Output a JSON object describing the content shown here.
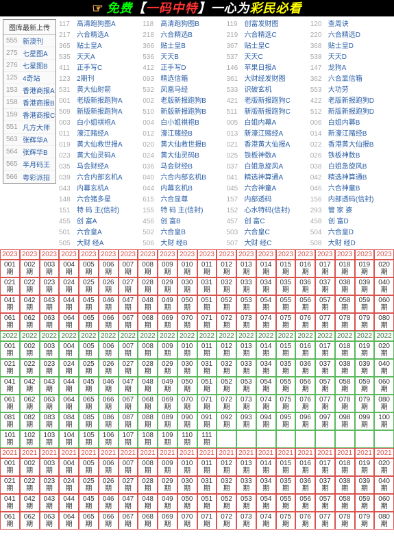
{
  "banner": {
    "hand": "☞",
    "t1": "免费",
    "lb": "【",
    "t2": "一码中特",
    "rb": "】",
    "t3": "一心为",
    "t4": "彩民必看"
  },
  "sidebar": {
    "title": "图库最新上传",
    "items": [
      {
        "n": "555",
        "t": "新澳刊"
      },
      {
        "n": "275",
        "t": "七星图A"
      },
      {
        "n": "276",
        "t": "七星图B"
      },
      {
        "n": "125",
        "t": "4奇站"
      },
      {
        "n": "153",
        "t": "香港商报A"
      },
      {
        "n": "158",
        "t": "香港商报B"
      },
      {
        "n": "159",
        "t": "香港商报C"
      },
      {
        "n": "551",
        "t": "凡方大师"
      },
      {
        "n": "563",
        "t": "张辉华A"
      },
      {
        "n": "564",
        "t": "张辉华B"
      },
      {
        "n": "565",
        "t": "半月码王"
      },
      {
        "n": "566",
        "t": "粤彩派招"
      }
    ]
  },
  "links": [
    [
      {
        "n": "117",
        "t": "高清跑狗图A"
      },
      {
        "n": "118",
        "t": "高清跑狗图B"
      },
      {
        "n": "119",
        "t": "创富发财图"
      },
      {
        "n": "120",
        "t": "查周诀"
      }
    ],
    [
      {
        "n": "217",
        "t": "六合精选A"
      },
      {
        "n": "218",
        "t": "六合精选B"
      },
      {
        "n": "219",
        "t": "六合精选C"
      },
      {
        "n": "220",
        "t": "六合精选D"
      }
    ],
    [
      {
        "n": "365",
        "t": "贴士皇A"
      },
      {
        "n": "366",
        "t": "贴士皇B"
      },
      {
        "n": "367",
        "t": "贴士皇C"
      },
      {
        "n": "368",
        "t": "贴士皇D"
      }
    ],
    [
      {
        "n": "535",
        "t": "天天A"
      },
      {
        "n": "536",
        "t": "天天B"
      },
      {
        "n": "537",
        "t": "天天C"
      },
      {
        "n": "538",
        "t": "天天D"
      }
    ],
    [
      {
        "n": "411",
        "t": "正手写C"
      },
      {
        "n": "412",
        "t": "正手写D"
      },
      {
        "n": "146",
        "t": "苹果日报A"
      },
      {
        "n": "147",
        "t": "龙狗A"
      }
    ],
    [
      {
        "n": "123",
        "t": "2期刊"
      },
      {
        "n": "093",
        "t": "精选信箱"
      },
      {
        "n": "361",
        "t": "大财经发财图"
      },
      {
        "n": "362",
        "t": "六合显信箱"
      }
    ],
    [
      {
        "n": "531",
        "t": "黄大仙射箭"
      },
      {
        "n": "532",
        "t": "凤凰马经"
      },
      {
        "n": "533",
        "t": "识破玄机"
      },
      {
        "n": "553",
        "t": "大功劳"
      }
    ],
    [
      {
        "n": "001",
        "t": "老版新报跑狗A"
      },
      {
        "n": "002",
        "t": "老版新报跑狗B"
      },
      {
        "n": "421",
        "t": "老版新报跑狗C"
      },
      {
        "n": "422",
        "t": "老版新报跑狗D"
      }
    ],
    [
      {
        "n": "509",
        "t": "新版新报跑狗A"
      },
      {
        "n": "510",
        "t": "新版新报跑狗B"
      },
      {
        "n": "511",
        "t": "新版新报跑狗C"
      },
      {
        "n": "512",
        "t": "新版新报跑狗D"
      }
    ],
    [
      {
        "n": "003",
        "t": "白小姐祺袍A"
      },
      {
        "n": "004",
        "t": "白小姐祺袍B"
      },
      {
        "n": "005",
        "t": "白姐内幕A"
      },
      {
        "n": "006",
        "t": "白姐内幕B"
      }
    ],
    [
      {
        "n": "011",
        "t": "濠江赌经A"
      },
      {
        "n": "012",
        "t": "濠江赌经B"
      },
      {
        "n": "013",
        "t": "新濠江赌经A"
      },
      {
        "n": "014",
        "t": "新濠江赌经B"
      }
    ],
    [
      {
        "n": "019",
        "t": "黄大仙救世报A"
      },
      {
        "n": "020",
        "t": "黄大仙救世报B"
      },
      {
        "n": "021",
        "t": "香港黄大仙报A"
      },
      {
        "n": "022",
        "t": "香港黄大仙报B"
      }
    ],
    [
      {
        "n": "023",
        "t": "黄大仙灵码A"
      },
      {
        "n": "024",
        "t": "黄大仙灵码B"
      },
      {
        "n": "025",
        "t": "铁板神数A"
      },
      {
        "n": "026",
        "t": "铁板神数B"
      }
    ],
    [
      {
        "n": "035",
        "t": "马会财经A"
      },
      {
        "n": "036",
        "t": "马会财经B"
      },
      {
        "n": "037",
        "t": "白姐急旋风A"
      },
      {
        "n": "038",
        "t": "白姐急旋风B"
      }
    ],
    [
      {
        "n": "039",
        "t": "六合内部玄机A"
      },
      {
        "n": "040",
        "t": "六合内部玄机B"
      },
      {
        "n": "041",
        "t": "精选神算通A"
      },
      {
        "n": "042",
        "t": "精选神算通B"
      }
    ],
    [
      {
        "n": "043",
        "t": "内幕玄机A"
      },
      {
        "n": "044",
        "t": "内幕玄机B"
      },
      {
        "n": "045",
        "t": "六合神童A"
      },
      {
        "n": "046",
        "t": "六合神童B"
      }
    ],
    [
      {
        "n": "148",
        "t": "六合猪多星"
      },
      {
        "n": "615",
        "t": "六合显尊"
      },
      {
        "n": "157",
        "t": "内部透码"
      },
      {
        "n": "156",
        "t": "内部透码(信封)"
      }
    ],
    [
      {
        "n": "151",
        "t": "特 码 主(信封)"
      },
      {
        "n": "155",
        "t": "特 码 主(信封)"
      },
      {
        "n": "152",
        "t": "心水特码(信封)"
      },
      {
        "n": "293",
        "t": "管 家 婆"
      }
    ],
    [
      {
        "n": "455",
        "t": "创 富A"
      },
      {
        "n": "456",
        "t": "创 富B"
      },
      {
        "n": "457",
        "t": "创 富C"
      },
      {
        "n": "458",
        "t": "创 富D"
      }
    ],
    [
      {
        "n": "501",
        "t": "六合皇A"
      },
      {
        "n": "502",
        "t": "六合皇B"
      },
      {
        "n": "503",
        "t": "六合皇C"
      },
      {
        "n": "504",
        "t": "六合皇D"
      }
    ],
    [
      {
        "n": "505",
        "t": "大财 经A"
      },
      {
        "n": "506",
        "t": "大财 经B"
      },
      {
        "n": "507",
        "t": "大财 经C"
      },
      {
        "n": "508",
        "t": "大财 经D"
      }
    ]
  ],
  "sections": [
    {
      "year": "2023",
      "cls": "y-red",
      "yearCols": 20,
      "from": 1,
      "to": 80
    },
    {
      "year": "2022",
      "cls": "y-green",
      "yearCols": 20,
      "from": 1,
      "to": 111
    },
    {
      "year": "2021",
      "cls": "y-red",
      "yearCols": 20,
      "from": 1,
      "to": 80
    }
  ],
  "suffix": "期"
}
